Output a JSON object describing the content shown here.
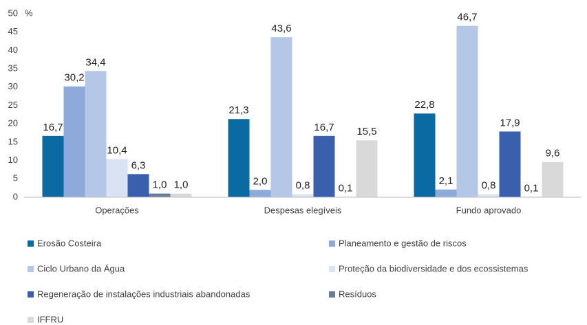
{
  "chart_data": {
    "type": "bar",
    "y_unit": "%",
    "categories": [
      "Operações",
      "Despesas elegíveis",
      "Fundo aprovado"
    ],
    "series": [
      {
        "name": "Erosão Costeira",
        "color": "#0a6aa1",
        "values": [
          16.7,
          21.3,
          22.8
        ],
        "value_labels": [
          "16,7",
          "21,3",
          "22,8"
        ]
      },
      {
        "name": "Planeamento e gestão de riscos",
        "color": "#8eaadb",
        "values": [
          30.2,
          2.0,
          2.1
        ],
        "value_labels": [
          "30,2",
          "2,0",
          "2,1"
        ]
      },
      {
        "name": "Ciclo Urbano da Água",
        "color": "#b4c7e7",
        "values": [
          34.4,
          43.6,
          46.7
        ],
        "value_labels": [
          "34,4",
          "43,6",
          "46,7"
        ]
      },
      {
        "name": "Proteção da biodiversidade e dos ecossistemas",
        "color": "#dae3f3",
        "values": [
          10.4,
          0.8,
          0.8
        ],
        "value_labels": [
          "10,4",
          "0,8",
          "0,8"
        ]
      },
      {
        "name": "Regeneração de instalações industriais abandonadas",
        "color": "#3a60ad",
        "values": [
          6.3,
          16.7,
          17.9
        ],
        "value_labels": [
          "6,3",
          "16,7",
          "17,9"
        ]
      },
      {
        "name": "Resíduos",
        "color": "#6a7d96",
        "values": [
          1.0,
          0.1,
          0.1
        ],
        "value_labels": [
          "1,0",
          "0,1",
          "0,1"
        ]
      },
      {
        "name": "IFFRU",
        "color": "#d9d9d9",
        "values": [
          1.0,
          15.5,
          9.6
        ],
        "value_labels": [
          "1,0",
          "15,5",
          "9,6"
        ]
      }
    ],
    "ylim": [
      0,
      50
    ],
    "yticks": [
      0,
      5,
      10,
      15,
      20,
      25,
      30,
      35,
      40,
      45,
      50
    ],
    "grid": false
  }
}
